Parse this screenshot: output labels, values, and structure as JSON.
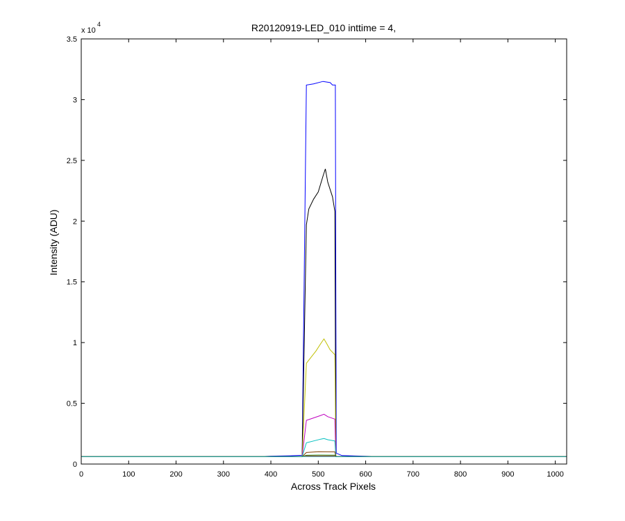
{
  "window": {
    "background": "#ffffff"
  },
  "chart_data": {
    "type": "line",
    "title": "R20120919-LED_010 inttime = 4,",
    "xlabel": "Across Track Pixels",
    "ylabel": "Intensity (ADU)",
    "xlim": [
      0,
      1024
    ],
    "ylim": [
      0,
      35000
    ],
    "x_ticks": [
      0,
      100,
      200,
      300,
      400,
      500,
      600,
      700,
      800,
      900,
      1000
    ],
    "y_ticks": [
      0,
      0.5,
      1,
      1.5,
      2,
      2.5,
      3,
      3.5
    ],
    "y_tick_labels": [
      "0",
      "0.5",
      "1",
      "1.5",
      "2",
      "2.5",
      "3",
      "3.5"
    ],
    "y_multiplier_base": "x 10",
    "y_multiplier_exponent": "4",
    "grid": false,
    "series": [
      {
        "color": "#0000ff",
        "points": [
          [
            0,
            620
          ],
          [
            380,
            620
          ],
          [
            400,
            650
          ],
          [
            440,
            680
          ],
          [
            466,
            720
          ],
          [
            475,
            31200
          ],
          [
            490,
            31300
          ],
          [
            510,
            31500
          ],
          [
            525,
            31400
          ],
          [
            530,
            31200
          ],
          [
            536,
            31200
          ],
          [
            538,
            900
          ],
          [
            550,
            700
          ],
          [
            600,
            640
          ],
          [
            625,
            620
          ],
          [
            1024,
            620
          ]
        ]
      },
      {
        "color": "#000000",
        "points": [
          [
            0,
            620
          ],
          [
            466,
            620
          ],
          [
            475,
            19700
          ],
          [
            480,
            21000
          ],
          [
            490,
            21800
          ],
          [
            500,
            22400
          ],
          [
            510,
            23700
          ],
          [
            515,
            24300
          ],
          [
            520,
            23200
          ],
          [
            525,
            22600
          ],
          [
            530,
            22000
          ],
          [
            535,
            20800
          ],
          [
            537,
            600
          ],
          [
            1024,
            620
          ]
        ]
      },
      {
        "color": "#bfbf00",
        "points": [
          [
            0,
            620
          ],
          [
            466,
            620
          ],
          [
            475,
            8300
          ],
          [
            485,
            8800
          ],
          [
            495,
            9300
          ],
          [
            505,
            9900
          ],
          [
            512,
            10300
          ],
          [
            518,
            9900
          ],
          [
            525,
            9400
          ],
          [
            535,
            9000
          ],
          [
            537,
            620
          ],
          [
            1024,
            620
          ]
        ]
      },
      {
        "color": "#bf00bf",
        "points": [
          [
            0,
            620
          ],
          [
            466,
            620
          ],
          [
            475,
            3600
          ],
          [
            490,
            3800
          ],
          [
            505,
            4000
          ],
          [
            512,
            4100
          ],
          [
            520,
            3900
          ],
          [
            535,
            3700
          ],
          [
            537,
            620
          ],
          [
            1024,
            620
          ]
        ]
      },
      {
        "color": "#00bfbf",
        "points": [
          [
            0,
            620
          ],
          [
            466,
            620
          ],
          [
            475,
            1750
          ],
          [
            490,
            1900
          ],
          [
            505,
            2050
          ],
          [
            512,
            2100
          ],
          [
            520,
            2000
          ],
          [
            535,
            1900
          ],
          [
            537,
            620
          ],
          [
            1024,
            620
          ]
        ]
      },
      {
        "color": "#804000",
        "points": [
          [
            0,
            620
          ],
          [
            466,
            620
          ],
          [
            475,
            950
          ],
          [
            500,
            1020
          ],
          [
            535,
            1000
          ],
          [
            537,
            620
          ],
          [
            1024,
            620
          ]
        ]
      },
      {
        "color": "#008000",
        "points": [
          [
            0,
            620
          ],
          [
            466,
            620
          ],
          [
            475,
            720
          ],
          [
            500,
            740
          ],
          [
            535,
            730
          ],
          [
            537,
            620
          ],
          [
            1024,
            620
          ]
        ]
      },
      {
        "color": "#ff0000",
        "points": [
          [
            0,
            620
          ],
          [
            466,
            620
          ],
          [
            475,
            660
          ],
          [
            535,
            660
          ],
          [
            537,
            620
          ],
          [
            1024,
            620
          ]
        ]
      },
      {
        "color": "#00bfbf",
        "points": [
          [
            0,
            620
          ],
          [
            1024,
            620
          ]
        ]
      }
    ]
  }
}
